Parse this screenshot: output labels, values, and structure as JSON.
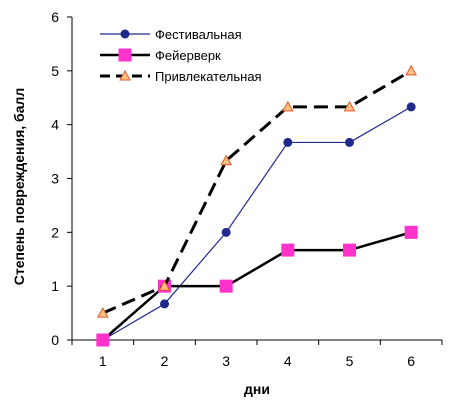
{
  "chart_data": {
    "type": "line",
    "title": "",
    "xlabel": "дни",
    "ylabel": "Степень повреждения, балл",
    "x": [
      1,
      2,
      3,
      4,
      5,
      6
    ],
    "xlim": [
      0.5,
      6.5
    ],
    "ylim": [
      0,
      6
    ],
    "yticks": [
      0,
      1,
      2,
      3,
      4,
      5,
      6
    ],
    "grid": false,
    "legend_position": "top-left",
    "series": [
      {
        "name": "Фестивальная",
        "values": [
          0,
          0.67,
          2,
          3.67,
          3.67,
          4.33
        ],
        "color": "#1f2a8c",
        "line_style": "solid",
        "marker": "circle"
      },
      {
        "name": "Фейерверк",
        "values": [
          0,
          1,
          1,
          1.67,
          1.67,
          2
        ],
        "color": "#000000",
        "marker_color": "#ff33cc",
        "line_style": "solid-thick",
        "marker": "square"
      },
      {
        "name": "Привлекательная",
        "values": [
          0.5,
          1,
          3.33,
          4.33,
          4.33,
          5
        ],
        "color": "#000000",
        "marker_color": "#ffc080",
        "line_style": "dashed",
        "marker": "triangle"
      }
    ]
  }
}
